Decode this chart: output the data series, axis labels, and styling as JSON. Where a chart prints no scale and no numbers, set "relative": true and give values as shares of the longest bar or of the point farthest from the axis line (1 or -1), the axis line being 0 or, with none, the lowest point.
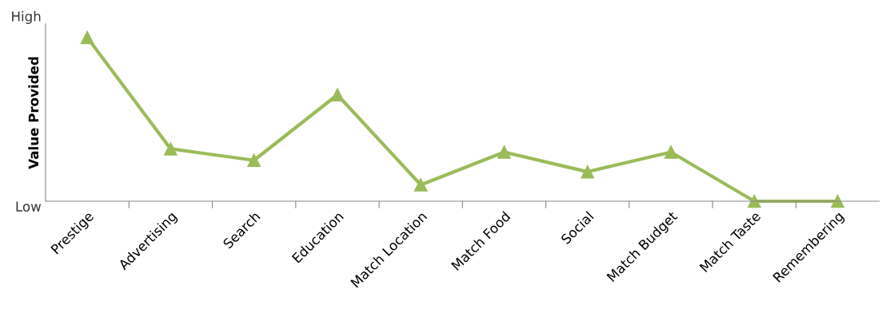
{
  "chart_data": {
    "type": "line",
    "ylabel": "Value Provided",
    "relative": true,
    "categories": [
      "Prestige",
      "Advertising",
      "Search",
      "Education",
      "Match Location",
      "Match Food",
      "Social",
      "Match Budget",
      "Match Taste",
      "Remembering"
    ],
    "series": [
      {
        "color": "#9bbb59",
        "values": [
          1,
          0.32,
          0.25,
          0.65,
          0.1,
          0.3,
          0.18,
          0.3,
          0,
          0
        ]
      }
    ],
    "annotations": [
      "High",
      "Low"
    ],
    "marker": "triangle",
    "line_style": "solid",
    "grid": false,
    "legend": false
  }
}
